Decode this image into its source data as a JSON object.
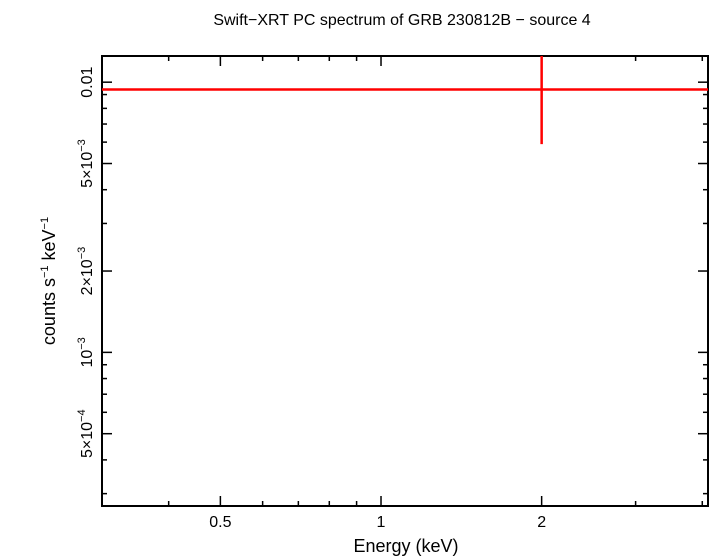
{
  "chart_data": {
    "type": "scatter",
    "title": "Swift−XRT PC spectrum of GRB 230812B − source 4",
    "xlabel": "Energy (keV)",
    "ylabel": {
      "base": "counts s",
      "exp1": "−1",
      "mid": " keV",
      "exp2": "−1"
    },
    "x_scale": "log",
    "y_scale": "log",
    "xlim": [
      0.3,
      4.1
    ],
    "ylim": [
      0.00027,
      0.0125
    ],
    "x_ticks": [
      {
        "value": 0.5,
        "label": "0.5"
      },
      {
        "value": 1,
        "label": "1"
      },
      {
        "value": 2,
        "label": "2"
      }
    ],
    "y_ticks": [
      {
        "value": 0.0005,
        "mantissa": "5×10",
        "exp": "−4"
      },
      {
        "value": 0.001,
        "mantissa": "10",
        "exp": "−3"
      },
      {
        "value": 0.002,
        "mantissa": "2×10",
        "exp": "−3"
      },
      {
        "value": 0.005,
        "mantissa": "5×10",
        "exp": "−3"
      },
      {
        "value": 0.01,
        "mantissa": "0.01",
        "exp": ""
      }
    ],
    "series": [
      {
        "color": "#ff0000",
        "points": [
          {
            "x": 2.0,
            "x_lo": 0.3,
            "x_hi": 4.1,
            "y": 0.0094,
            "y_lo": 0.0059,
            "y_hi": 0.0125
          }
        ]
      }
    ]
  }
}
